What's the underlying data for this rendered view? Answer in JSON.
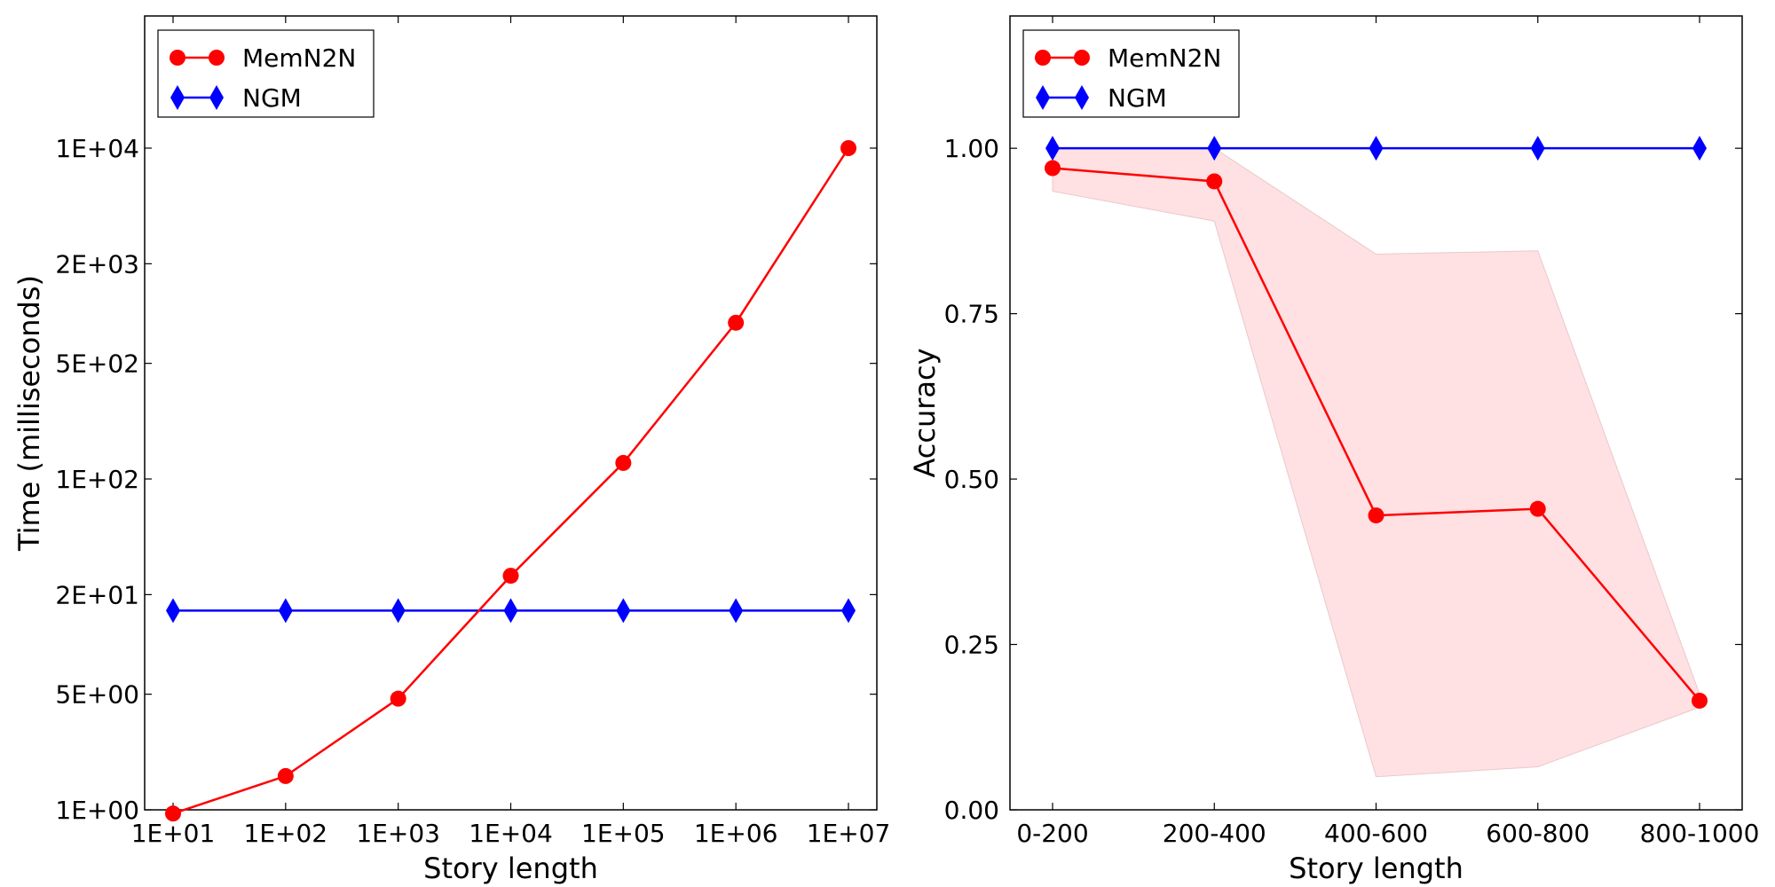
{
  "chart_data": [
    {
      "type": "line",
      "xlabel": "Story length",
      "ylabel": "Time (milliseconds)",
      "xscale": "log",
      "yscale": "log",
      "x": [
        10,
        100,
        1000,
        10000,
        100000,
        1000000,
        10000000
      ],
      "xtick_labels": [
        "1E+01",
        "1E+02",
        "1E+03",
        "1E+04",
        "1E+05",
        "1E+06",
        "1E+07"
      ],
      "yticks": [
        1,
        5,
        20,
        100,
        500,
        2000,
        10000
      ],
      "ytick_labels": [
        "1E+00",
        "5E+00",
        "2E+01",
        "1E+02",
        "5E+02",
        "2E+03",
        "1E+04"
      ],
      "series": [
        {
          "name": "MemN2N",
          "color": "#ff0000",
          "marker": "circle",
          "values": [
            0.95,
            1.6,
            4.7,
            26,
            125,
            880,
            10000
          ]
        },
        {
          "name": "NGM",
          "color": "#0000ff",
          "marker": "diamond",
          "values": [
            16,
            16,
            16,
            16,
            16,
            16,
            16
          ]
        }
      ],
      "legend": "top-left",
      "grid": false
    },
    {
      "type": "line",
      "xlabel": "Story length",
      "ylabel": "Accuracy",
      "categories": [
        "0-200",
        "200-400",
        "400-600",
        "600-800",
        "800-1000"
      ],
      "ylim": [
        0,
        1.2
      ],
      "yticks": [
        0.0,
        0.25,
        0.5,
        0.75,
        1.0
      ],
      "ytick_labels": [
        "0.00",
        "0.25",
        "0.50",
        "0.75",
        "1.00"
      ],
      "series": [
        {
          "name": "MemN2N",
          "color": "#ff0000",
          "marker": "circle",
          "values": [
            0.97,
            0.95,
            0.445,
            0.455,
            0.165
          ],
          "band_lower": [
            0.935,
            0.89,
            0.05,
            0.065,
            0.155
          ],
          "band_upper": [
            1.0,
            1.0,
            0.84,
            0.845,
            0.175
          ],
          "band_color": "#ffe0e3"
        },
        {
          "name": "NGM",
          "color": "#0000ff",
          "marker": "diamond",
          "values": [
            1.0,
            1.0,
            1.0,
            1.0,
            1.0
          ]
        }
      ],
      "legend": "top-left",
      "grid": false
    }
  ]
}
